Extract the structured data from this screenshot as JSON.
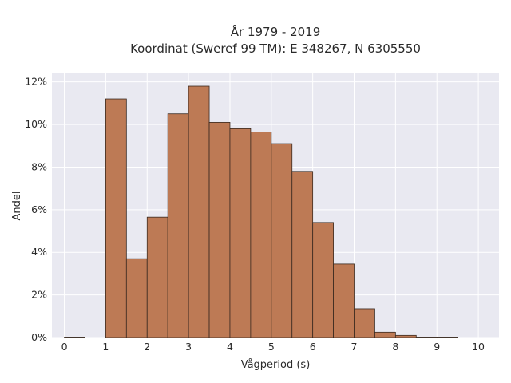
{
  "chart_data": {
    "type": "bar",
    "title": "År 1979 - 2019",
    "subtitle": "Koordinat (Sweref 99 TM): E 348267, N 6305550",
    "xlabel": "Vågperiod (s)",
    "ylabel": "Andel",
    "xlim": [
      -0.3,
      10.5
    ],
    "ylim": [
      0,
      12.4
    ],
    "x_ticks": [
      "0",
      "1",
      "2",
      "3",
      "4",
      "5",
      "6",
      "7",
      "8",
      "9",
      "10"
    ],
    "y_ticks": [
      "0%",
      "2%",
      "4%",
      "6%",
      "8%",
      "10%",
      "12%"
    ],
    "grid": true,
    "bin_width": 0.5,
    "bins": [
      {
        "x": 0.0,
        "value": 0.02
      },
      {
        "x": 0.5,
        "value": 0.0
      },
      {
        "x": 1.0,
        "value": 11.2
      },
      {
        "x": 1.5,
        "value": 3.7
      },
      {
        "x": 2.0,
        "value": 5.65
      },
      {
        "x": 2.5,
        "value": 10.5
      },
      {
        "x": 3.0,
        "value": 11.8
      },
      {
        "x": 3.5,
        "value": 10.1
      },
      {
        "x": 4.0,
        "value": 9.8
      },
      {
        "x": 4.5,
        "value": 9.65
      },
      {
        "x": 5.0,
        "value": 9.1
      },
      {
        "x": 5.5,
        "value": 7.8
      },
      {
        "x": 6.0,
        "value": 5.4
      },
      {
        "x": 6.5,
        "value": 3.45
      },
      {
        "x": 7.0,
        "value": 1.35
      },
      {
        "x": 7.5,
        "value": 0.25
      },
      {
        "x": 8.0,
        "value": 0.1
      },
      {
        "x": 8.5,
        "value": 0.02
      },
      {
        "x": 9.0,
        "value": 0.02
      },
      {
        "x": 9.5,
        "value": 0.0
      }
    ],
    "bar_color": "#bd7a55",
    "bar_edge_color": "#3a2a20",
    "plot_background": "#e9e9f1",
    "grid_color": "#ffffff"
  }
}
